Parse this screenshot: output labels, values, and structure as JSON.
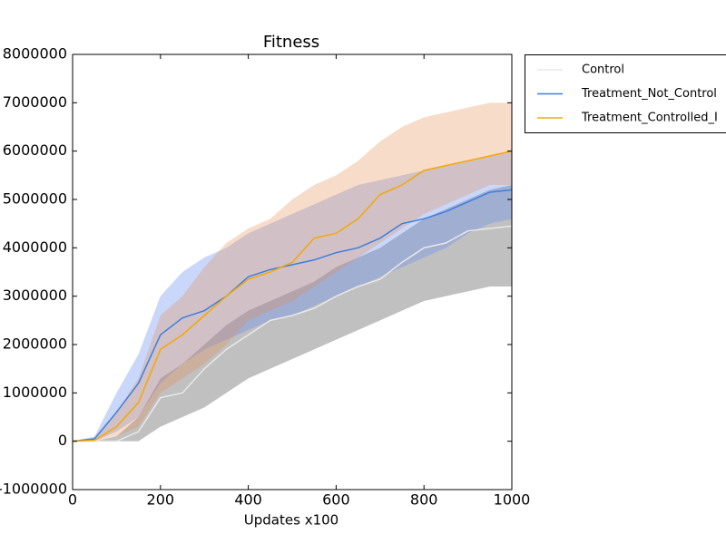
{
  "chart_data": {
    "type": "line",
    "title": "Fitness",
    "x_label": "Updates x100",
    "x": [
      0,
      50,
      100,
      150,
      200,
      250,
      300,
      350,
      400,
      450,
      500,
      550,
      600,
      650,
      700,
      750,
      800,
      850,
      900,
      950,
      1000
    ],
    "series": [
      {
        "name": "Control",
        "color": "#e8e8e8",
        "band_color": "rgba(150,150,150,0.6)",
        "values": [
          0,
          0,
          0,
          200000,
          900000,
          1000000,
          1500000,
          1900000,
          2200000,
          2500000,
          2600000,
          2750000,
          3000000,
          3200000,
          3350000,
          3700000,
          4000000,
          4100000,
          4350000,
          4400000,
          4450000
        ],
        "lower": [
          0,
          0,
          0,
          0,
          300000,
          500000,
          700000,
          1000000,
          1300000,
          1500000,
          1700000,
          1900000,
          2100000,
          2300000,
          2500000,
          2700000,
          2900000,
          3000000,
          3100000,
          3200000,
          3200000
        ],
        "upper": [
          0,
          0,
          100000,
          500000,
          1300000,
          1600000,
          2000000,
          2400000,
          2700000,
          2900000,
          3100000,
          3300000,
          3600000,
          3800000,
          4000000,
          4300000,
          4600000,
          4800000,
          5000000,
          5200000,
          5300000
        ]
      },
      {
        "name": "Treatment_Not_Control",
        "color": "#3a7fe0",
        "band_color": "rgba(100,140,240,0.35)",
        "values": [
          0,
          50000,
          600000,
          1200000,
          2200000,
          2550000,
          2700000,
          3000000,
          3400000,
          3550000,
          3650000,
          3750000,
          3900000,
          4000000,
          4200000,
          4500000,
          4600000,
          4750000,
          4950000,
          5150000,
          5200000
        ],
        "lower": [
          0,
          0,
          200000,
          500000,
          1200000,
          1600000,
          1900000,
          2100000,
          2300000,
          2500000,
          2600000,
          2800000,
          3000000,
          3200000,
          3400000,
          3600000,
          3800000,
          4000000,
          4300000,
          4500000,
          4600000
        ],
        "upper": [
          0,
          100000,
          1000000,
          1800000,
          3000000,
          3500000,
          3800000,
          4000000,
          4300000,
          4500000,
          4700000,
          4900000,
          5100000,
          5300000,
          5400000,
          5500000,
          5600000,
          5700000,
          5800000,
          5900000,
          6000000
        ]
      },
      {
        "name": "Treatment_Controlled_I",
        "color": "#f5a800",
        "band_color": "rgba(230,140,80,0.3)",
        "values": [
          0,
          20000,
          300000,
          800000,
          1900000,
          2200000,
          2600000,
          3000000,
          3350000,
          3500000,
          3700000,
          4200000,
          4300000,
          4600000,
          5100000,
          5300000,
          5600000,
          5700000,
          5800000,
          5900000,
          6000000
        ],
        "lower": [
          0,
          0,
          100000,
          300000,
          1000000,
          1300000,
          1600000,
          2000000,
          2500000,
          2700000,
          2900000,
          3200000,
          3500000,
          3800000,
          4100000,
          4400000,
          4700000,
          4900000,
          5100000,
          5300000,
          5300000
        ],
        "upper": [
          0,
          50000,
          600000,
          1300000,
          2600000,
          3000000,
          3600000,
          4100000,
          4400000,
          4600000,
          5000000,
          5300000,
          5500000,
          5800000,
          6200000,
          6500000,
          6700000,
          6800000,
          6900000,
          7000000,
          7000000
        ]
      }
    ],
    "xlim": [
      0,
      1000
    ],
    "xticks": [
      0,
      200,
      400,
      600,
      800,
      1000
    ],
    "ylim": [
      -1000000,
      8000000
    ],
    "yticks": [
      -1000000,
      0,
      1000000,
      2000000,
      3000000,
      4000000,
      5000000,
      6000000,
      7000000,
      8000000
    ],
    "legend": "outside-right"
  }
}
